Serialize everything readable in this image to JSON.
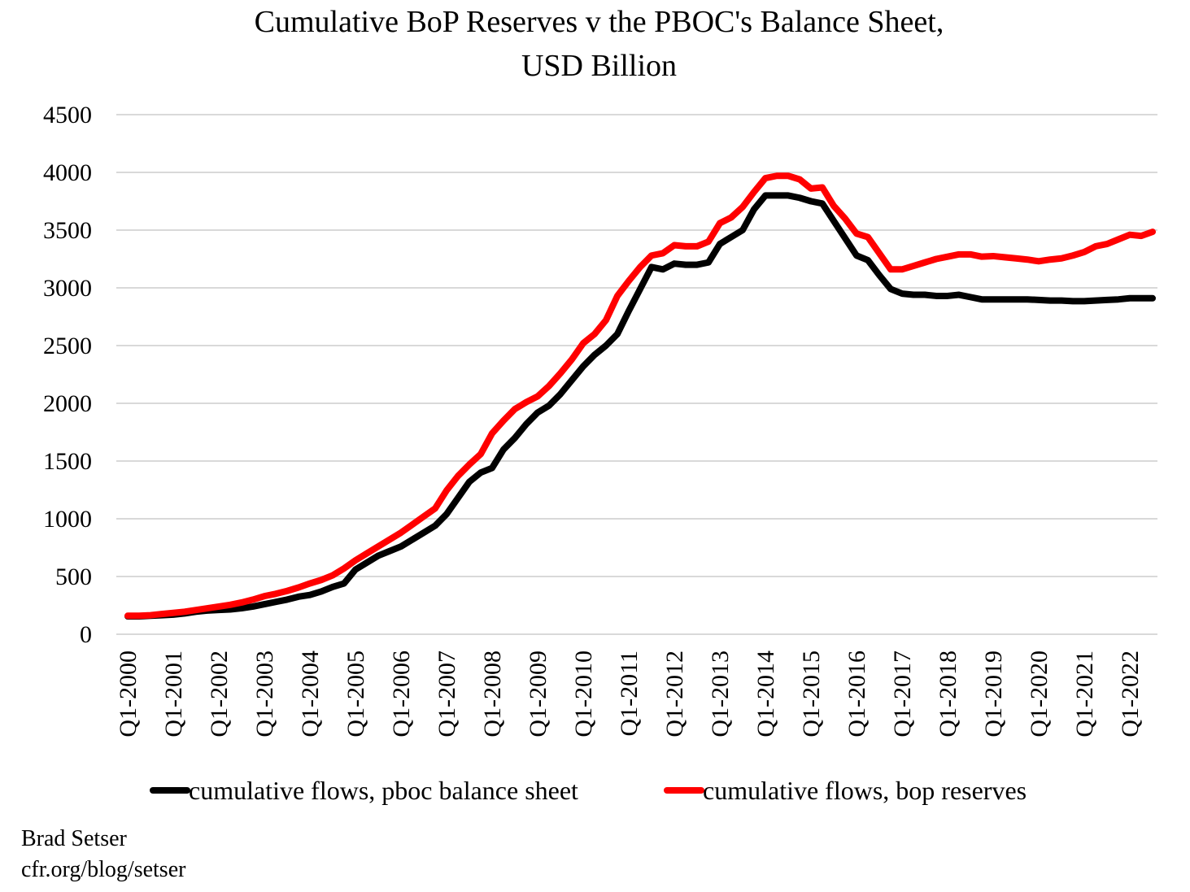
{
  "chart_data": {
    "type": "line",
    "title": "Cumulative BoP Reserves v the  PBOC's Balance Sheet,",
    "subtitle": "USD Billion",
    "xlabel": "",
    "ylabel": "",
    "ylim": [
      0,
      4500
    ],
    "yticks": [
      0,
      500,
      1000,
      1500,
      2000,
      2500,
      3000,
      3500,
      4000,
      4500
    ],
    "grid": true,
    "legend_position": "bottom",
    "x_start": "Q1-2000",
    "x_end": "Q3-2022",
    "xtick_labels": [
      "Q1-2000",
      "Q1-2001",
      "Q1-2002",
      "Q1-2003",
      "Q1-2004",
      "Q1-2005",
      "Q1-2006",
      "Q1-2007",
      "Q1-2008",
      "Q1-2009",
      "Q1-2010",
      "Q1-2011",
      "Q1-2012",
      "Q1-2013",
      "Q1-2014",
      "Q1-2015",
      "Q1-2016",
      "Q1-2017",
      "Q1-2018",
      "Q1-2019",
      "Q1-2020",
      "Q1-2021",
      "Q1-2022"
    ],
    "series": [
      {
        "name": "cumulative flows, pboc balance sheet",
        "color": "#000000",
        "values": [
          155,
          155,
          160,
          165,
          170,
          180,
          195,
          205,
          210,
          215,
          225,
          240,
          260,
          280,
          300,
          325,
          340,
          370,
          410,
          440,
          560,
          620,
          680,
          720,
          760,
          820,
          880,
          940,
          1040,
          1180,
          1320,
          1400,
          1440,
          1600,
          1700,
          1820,
          1920,
          1980,
          2080,
          2200,
          2320,
          2420,
          2500,
          2600,
          2800,
          2990,
          3180,
          3160,
          3210,
          3200,
          3200,
          3220,
          3380,
          3440,
          3500,
          3680,
          3800,
          3800,
          3800,
          3780,
          3750,
          3730,
          3580,
          3430,
          3280,
          3240,
          3110,
          2990,
          2950,
          2940,
          2940,
          2930,
          2930,
          2940,
          2920,
          2900,
          2900,
          2900,
          2900,
          2900,
          2895,
          2890,
          2890,
          2885,
          2885,
          2890,
          2895,
          2900,
          2910,
          2910,
          2910
        ]
      },
      {
        "name": "cumulative flows, bop reserves",
        "color": "#ff0000",
        "values": [
          160,
          160,
          165,
          175,
          185,
          195,
          210,
          225,
          240,
          255,
          275,
          300,
          330,
          350,
          375,
          405,
          440,
          470,
          510,
          570,
          640,
          700,
          760,
          820,
          880,
          950,
          1020,
          1090,
          1245,
          1370,
          1470,
          1560,
          1740,
          1850,
          1950,
          2010,
          2060,
          2150,
          2260,
          2380,
          2520,
          2600,
          2720,
          2930,
          3060,
          3180,
          3280,
          3300,
          3370,
          3360,
          3360,
          3400,
          3560,
          3610,
          3700,
          3830,
          3950,
          3970,
          3970,
          3940,
          3860,
          3870,
          3710,
          3600,
          3470,
          3440,
          3300,
          3160,
          3160,
          3190,
          3220,
          3250,
          3270,
          3290,
          3290,
          3270,
          3275,
          3265,
          3255,
          3245,
          3230,
          3245,
          3255,
          3280,
          3310,
          3360,
          3380,
          3420,
          3460,
          3450,
          3485
        ]
      }
    ]
  },
  "footer": {
    "author": "Brad Setser",
    "source": "cfr.org/blog/setser"
  }
}
